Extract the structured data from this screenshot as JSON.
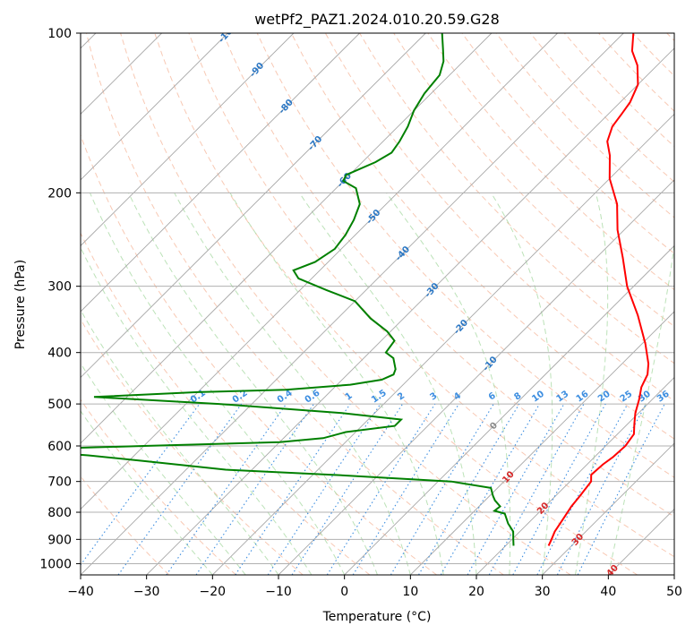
{
  "chart_data": {
    "type": "line",
    "title": "wetPf2_PAZ1.2024.010.20.59.G28",
    "xlabel": "Temperature (°C)",
    "ylabel": "Pressure (hPa)",
    "xlim": [
      -40,
      50
    ],
    "ylim": [
      1050,
      100
    ],
    "y_scale": "log",
    "x_ticks": [
      -40,
      -30,
      -20,
      -10,
      0,
      10,
      20,
      30,
      40,
      50
    ],
    "y_ticks": [
      100,
      200,
      300,
      400,
      500,
      600,
      700,
      800,
      900,
      1000
    ],
    "grid": true,
    "skew": 35,
    "series": [
      {
        "role": "temperature",
        "color": "#ff0000",
        "points": [
          [
            26.5,
            925
          ],
          [
            26.0,
            900
          ],
          [
            25.3,
            870
          ],
          [
            24.6,
            820
          ],
          [
            24.0,
            780
          ],
          [
            23.7,
            745
          ],
          [
            23.2,
            700
          ],
          [
            22.2,
            680
          ],
          [
            22.4,
            650
          ],
          [
            22.8,
            630
          ],
          [
            23.0,
            600
          ],
          [
            22.5,
            570
          ],
          [
            21.0,
            545
          ],
          [
            19.5,
            520
          ],
          [
            18.0,
            490
          ],
          [
            16.5,
            465
          ],
          [
            15.5,
            440
          ],
          [
            14.0,
            420
          ],
          [
            10.5,
            385
          ],
          [
            5.0,
            340
          ],
          [
            -1.0,
            300
          ],
          [
            -6.0,
            265
          ],
          [
            -11.0,
            235
          ],
          [
            -15.0,
            210
          ],
          [
            -20.0,
            188
          ],
          [
            -23.5,
            170
          ],
          [
            -26.0,
            160
          ],
          [
            -27.5,
            150
          ],
          [
            -28.0,
            142
          ],
          [
            -28.5,
            135
          ],
          [
            -30.0,
            125
          ],
          [
            -33.0,
            115
          ],
          [
            -36.0,
            108
          ],
          [
            -38.5,
            100
          ]
        ]
      },
      {
        "role": "dewpoint",
        "color": "#008000",
        "points": [
          [
            21.2,
            925
          ],
          [
            20.2,
            900
          ],
          [
            19.0,
            870
          ],
          [
            17.0,
            840
          ],
          [
            15.0,
            805
          ],
          [
            13.0,
            795
          ],
          [
            13.2,
            780
          ],
          [
            11.5,
            760
          ],
          [
            10.5,
            745
          ],
          [
            9.0,
            720
          ],
          [
            2.0,
            700
          ],
          [
            -17.0,
            680
          ],
          [
            -34.0,
            665
          ],
          [
            -48.0,
            640
          ],
          [
            -57.0,
            625
          ],
          [
            -70.0,
            610
          ],
          [
            -50.0,
            600
          ],
          [
            -30.0,
            590
          ],
          [
            -24.0,
            580
          ],
          [
            -21.5,
            565
          ],
          [
            -15.0,
            550
          ],
          [
            -15.0,
            535
          ],
          [
            -25.0,
            520
          ],
          [
            -45.0,
            500
          ],
          [
            -65.0,
            485
          ],
          [
            -50.0,
            475
          ],
          [
            -37.0,
            470
          ],
          [
            -28.0,
            460
          ],
          [
            -24.0,
            450
          ],
          [
            -23.0,
            440
          ],
          [
            -23.5,
            430
          ],
          [
            -25.5,
            410
          ],
          [
            -27.5,
            400
          ],
          [
            -28.0,
            380
          ],
          [
            -30.5,
            365
          ],
          [
            -35.0,
            345
          ],
          [
            -40.0,
            320
          ],
          [
            -46.0,
            305
          ],
          [
            -52.0,
            290
          ],
          [
            -54.0,
            280
          ],
          [
            -52.0,
            270
          ],
          [
            -51.0,
            255
          ],
          [
            -51.5,
            240
          ],
          [
            -52.5,
            225
          ],
          [
            -54.0,
            210
          ],
          [
            -57.0,
            196
          ],
          [
            -60.0,
            190
          ],
          [
            -60.5,
            185
          ],
          [
            -58.0,
            175
          ],
          [
            -57.0,
            168
          ],
          [
            -57.5,
            160
          ],
          [
            -58.5,
            150
          ],
          [
            -60.0,
            140
          ],
          [
            -61.0,
            130
          ],
          [
            -61.5,
            120
          ],
          [
            -63.0,
            113
          ],
          [
            -65.0,
            107
          ],
          [
            -67.5,
            100
          ]
        ]
      }
    ],
    "mixing_ratio_labels": [
      "0.1",
      "0.2",
      "0.4",
      "0.6",
      "1",
      "1.5",
      "2",
      "3",
      "4",
      "6",
      "8",
      "10",
      "13",
      "16",
      "20",
      "25",
      "30",
      "36"
    ],
    "mixing_ratio_values": [
      0.1,
      0.2,
      0.4,
      0.6,
      1,
      1.5,
      2,
      3,
      4,
      6,
      8,
      10,
      13,
      16,
      20,
      25,
      30,
      36
    ],
    "isotherm_labels_blue": [
      "-100",
      "-90",
      "-80",
      "-70",
      "-60",
      "-50",
      "-40",
      "-30",
      "-20",
      "-10"
    ],
    "isotherm_labels_gray": [
      "0"
    ],
    "isotherm_labels_red": [
      "10",
      "20",
      "30",
      "40"
    ],
    "colors": {
      "isotherm": "#a8a8a8",
      "dry_adiabat": "#f4a582",
      "moist_adiabat": "#a6d8a0",
      "mixing_ratio": "#3d8ee0",
      "neg_label": "#2b77c4",
      "zero_label": "#8a8a8a",
      "pos_label": "#d62728",
      "hgrid": "#b0b0b0"
    }
  }
}
